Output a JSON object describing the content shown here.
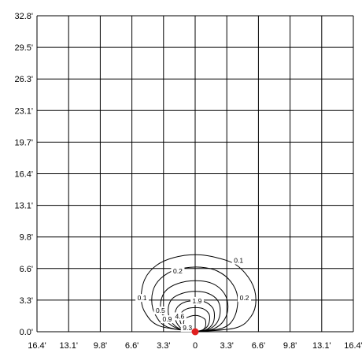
{
  "chart_data": {
    "type": "contour",
    "x_ticks": [
      "16.4'",
      "13.1'",
      "9.8'",
      "6.6'",
      "3.3'",
      "0",
      "3.3'",
      "6.6'",
      "9.8'",
      "13.1'",
      "16.4'"
    ],
    "y_ticks": [
      "0.0'",
      "3.3'",
      "6.6'",
      "9.8'",
      "13.1'",
      "16.4'",
      "19.7'",
      "23.1'",
      "26.3'",
      "29.5'",
      "32.8'"
    ],
    "xlim": [
      -16.4,
      16.4
    ],
    "ylim": [
      0,
      32.8
    ],
    "grid": true,
    "source": {
      "x": 0,
      "y": 0,
      "color": "#e02020"
    },
    "isolines": [
      {
        "value": 0.1,
        "label": "0.1",
        "points": [
          [
            0,
            0
          ],
          [
            -3.7,
            0.6
          ],
          [
            -5.2,
            2.0
          ],
          [
            -5.6,
            3.6
          ],
          [
            -5.2,
            5.5
          ],
          [
            -4.0,
            6.9
          ],
          [
            -2.2,
            7.7
          ],
          [
            0,
            8.0
          ],
          [
            2.2,
            7.7
          ],
          [
            4.3,
            6.9
          ],
          [
            5.8,
            5.2
          ],
          [
            6.3,
            3.3
          ],
          [
            5.8,
            1.6
          ],
          [
            4.2,
            0.4
          ],
          [
            0,
            0
          ]
        ],
        "label_at": [
          -5.5,
          3.5
        ],
        "label_at2": [
          4.5,
          7.4
        ]
      },
      {
        "value": 0.2,
        "label": "0.2",
        "points": [
          [
            0,
            0
          ],
          [
            -2.9,
            0.5
          ],
          [
            -4.1,
            1.7
          ],
          [
            -4.5,
            3.3
          ],
          [
            -4.1,
            4.9
          ],
          [
            -2.8,
            6.1
          ],
          [
            -1.2,
            6.6
          ],
          [
            0.6,
            6.7
          ],
          [
            2.3,
            6.3
          ],
          [
            3.7,
            5.2
          ],
          [
            4.4,
            3.6
          ],
          [
            4.1,
            1.6
          ],
          [
            2.9,
            0.4
          ],
          [
            0,
            0
          ]
        ],
        "label_at": [
          -1.8,
          6.3
        ],
        "label_at2": [
          5.1,
          3.5
        ]
      },
      {
        "value": 0.5,
        "label": "0.5",
        "points": [
          [
            0,
            0
          ],
          [
            -2.0,
            0.4
          ],
          [
            -3.2,
            1.4
          ],
          [
            -3.6,
            2.8
          ],
          [
            -3.1,
            4.2
          ],
          [
            -1.8,
            5.0
          ],
          [
            0,
            5.3
          ],
          [
            1.8,
            5.0
          ],
          [
            3.0,
            4.0
          ],
          [
            3.4,
            2.6
          ],
          [
            3.0,
            1.2
          ],
          [
            1.9,
            0.3
          ],
          [
            0,
            0
          ]
        ],
        "label_at": [
          -3.6,
          2.2
        ]
      },
      {
        "value": 0.9,
        "label": "0.9",
        "points": [
          [
            0,
            0
          ],
          [
            -1.6,
            0.3
          ],
          [
            -2.5,
            1.1
          ],
          [
            -2.8,
            2.3
          ],
          [
            -2.4,
            3.4
          ],
          [
            -1.3,
            4.0
          ],
          [
            0,
            4.2
          ],
          [
            1.3,
            4.0
          ],
          [
            2.3,
            3.3
          ],
          [
            2.6,
            2.2
          ],
          [
            2.3,
            1.0
          ],
          [
            1.5,
            0.3
          ],
          [
            0,
            0
          ]
        ],
        "label_at": [
          -2.9,
          1.3
        ]
      },
      {
        "value": 1.9,
        "label": "1.9",
        "points": [
          [
            0,
            0
          ],
          [
            -1.2,
            0.2
          ],
          [
            -1.9,
            0.9
          ],
          [
            -2.1,
            1.8
          ],
          [
            -1.8,
            2.6
          ],
          [
            -1.0,
            3.1
          ],
          [
            0,
            3.2
          ],
          [
            1.0,
            3.1
          ],
          [
            1.8,
            2.5
          ],
          [
            2.0,
            1.7
          ],
          [
            1.8,
            0.8
          ],
          [
            1.1,
            0.2
          ],
          [
            0,
            0
          ]
        ],
        "label_at": [
          0.2,
          3.2
        ]
      },
      {
        "value": 4.6,
        "label": "4.6",
        "points": [
          [
            0,
            0
          ],
          [
            -0.9,
            0.2
          ],
          [
            -1.4,
            0.7
          ],
          [
            -1.6,
            1.4
          ],
          [
            -1.4,
            2.0
          ],
          [
            -0.8,
            2.4
          ],
          [
            0,
            2.5
          ],
          [
            0.8,
            2.4
          ],
          [
            1.4,
            1.9
          ],
          [
            1.5,
            1.3
          ],
          [
            1.3,
            0.6
          ],
          [
            0.8,
            0.2
          ],
          [
            0,
            0
          ]
        ],
        "label_at": [
          -1.6,
          1.6
        ]
      },
      {
        "value": 9.3,
        "label": "9.3",
        "points": [
          [
            0,
            0
          ],
          [
            -0.7,
            0.1
          ],
          [
            -1.1,
            0.5
          ],
          [
            -1.2,
            1.0
          ],
          [
            -1.0,
            1.4
          ],
          [
            -0.5,
            1.6
          ],
          [
            0,
            1.7
          ],
          [
            0.5,
            1.6
          ],
          [
            1.0,
            1.3
          ],
          [
            1.1,
            0.9
          ],
          [
            1.0,
            0.4
          ],
          [
            0.6,
            0.1
          ],
          [
            0,
            0
          ]
        ],
        "label_at": [
          -0.8,
          0.4
        ]
      }
    ]
  }
}
